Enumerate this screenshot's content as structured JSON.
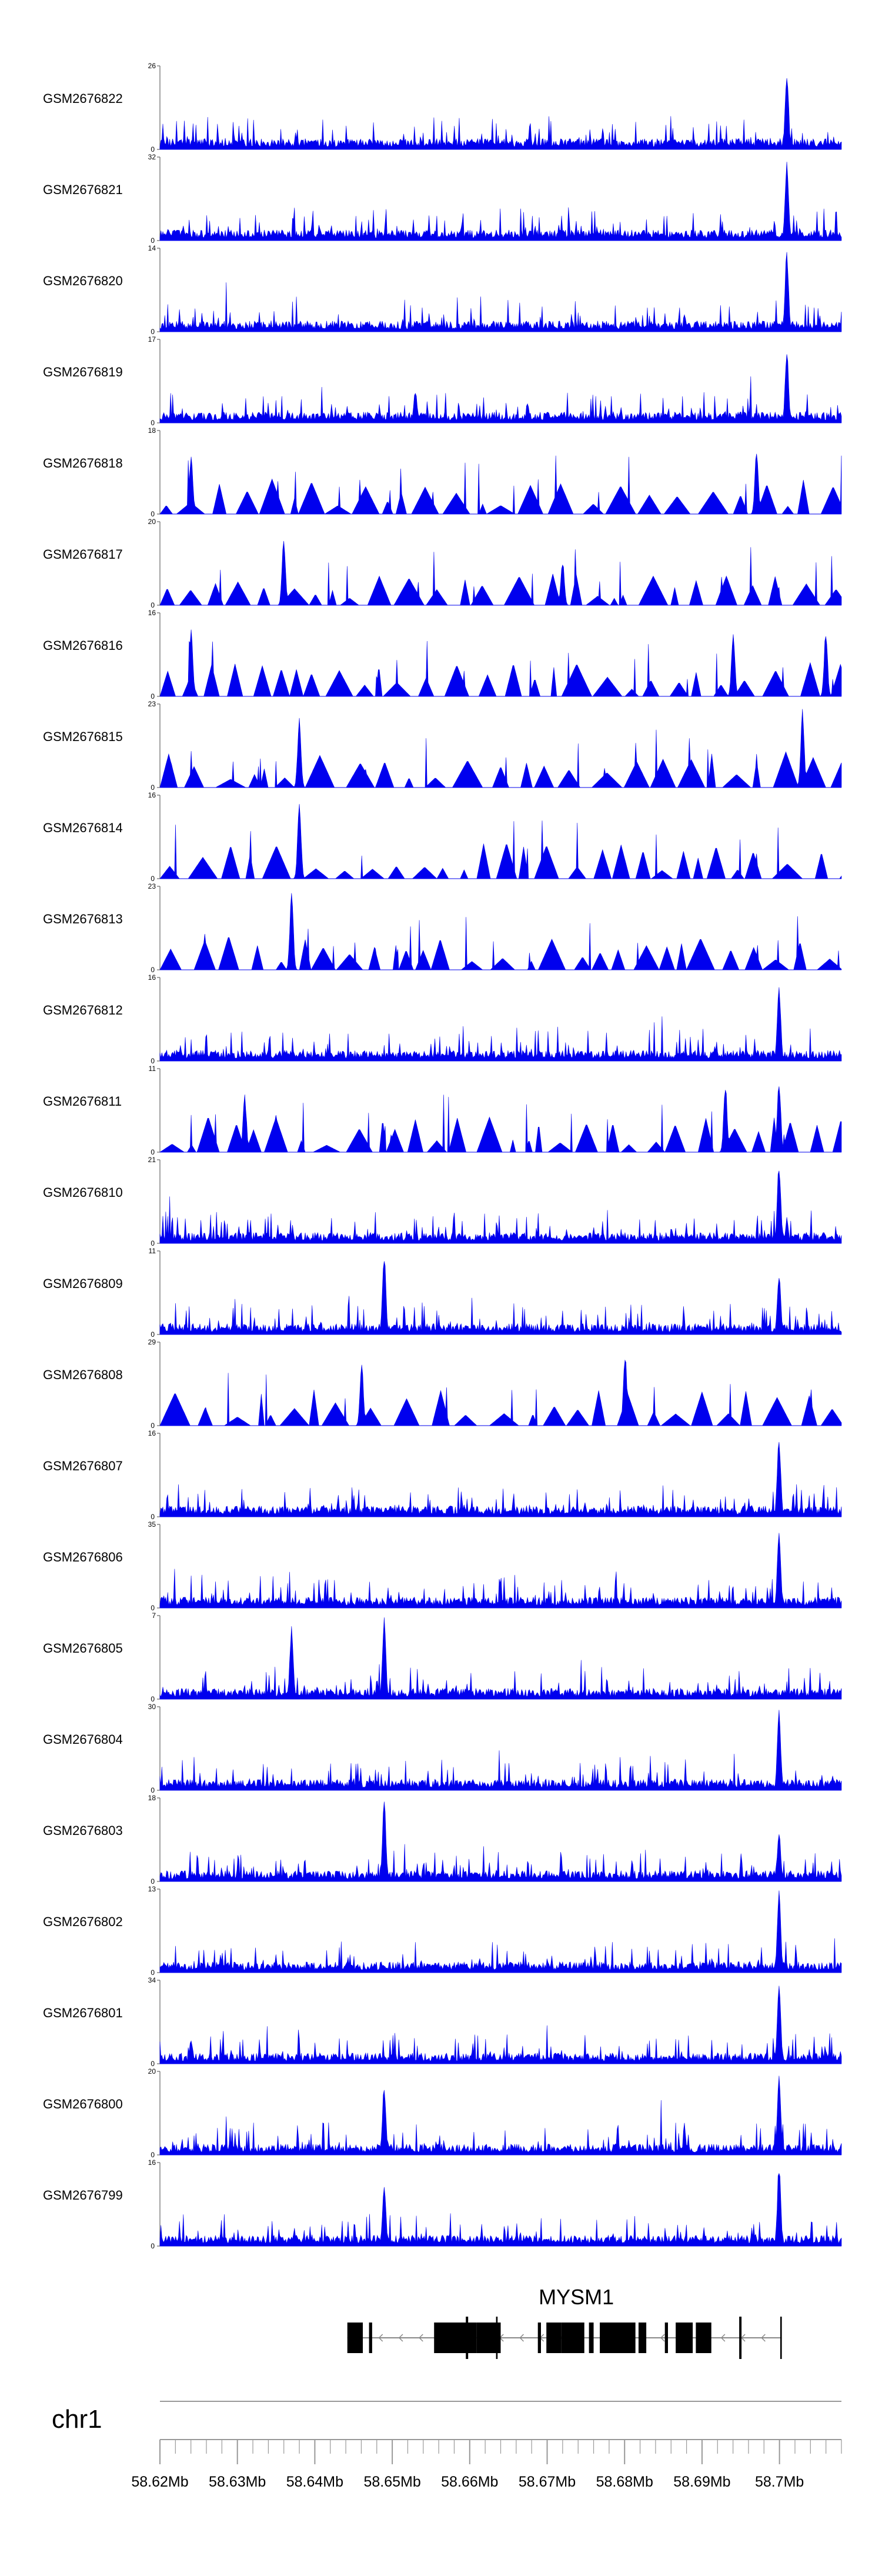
{
  "chart_data": {
    "type": "area",
    "chromosome": "chr1",
    "x_range_mb": [
      58.62,
      58.708
    ],
    "x_ticks": [
      "58.62Mb",
      "58.63Mb",
      "58.64Mb",
      "58.65Mb",
      "58.66Mb",
      "58.67Mb",
      "58.68Mb",
      "58.69Mb",
      "58.7Mb"
    ],
    "x_tick_values_mb": [
      58.62,
      58.63,
      58.64,
      58.65,
      58.66,
      58.67,
      58.68,
      58.69,
      58.7
    ],
    "track_color": "#0000ee",
    "tracks": [
      {
        "name": "GSM2676822",
        "ymax": 26,
        "style": "dense",
        "seed": 11,
        "peaks": [
          [
            58.701,
            1.0
          ]
        ]
      },
      {
        "name": "GSM2676821",
        "ymax": 32,
        "style": "dense",
        "seed": 12,
        "peaks": [
          [
            58.701,
            1.0
          ]
        ]
      },
      {
        "name": "GSM2676820",
        "ymax": 14,
        "style": "dense",
        "seed": 13,
        "peaks": [
          [
            58.701,
            1.0
          ]
        ]
      },
      {
        "name": "GSM2676819",
        "ymax": 17,
        "style": "dense",
        "seed": 14,
        "peaks": [
          [
            58.701,
            0.9
          ],
          [
            58.653,
            0.4
          ]
        ]
      },
      {
        "name": "GSM2676818",
        "ymax": 18,
        "style": "sparse",
        "seed": 15,
        "peaks": [
          [
            58.624,
            0.75
          ],
          [
            58.697,
            0.8
          ]
        ]
      },
      {
        "name": "GSM2676817",
        "ymax": 20,
        "style": "sparse",
        "seed": 16,
        "peaks": [
          [
            58.636,
            0.85
          ],
          [
            58.672,
            0.55
          ]
        ]
      },
      {
        "name": "GSM2676816",
        "ymax": 16,
        "style": "sparse",
        "seed": 17,
        "peaks": [
          [
            58.624,
            0.8
          ],
          [
            58.694,
            0.8
          ],
          [
            58.706,
            0.8
          ]
        ]
      },
      {
        "name": "GSM2676815",
        "ymax": 23,
        "style": "sparse",
        "seed": 18,
        "peaks": [
          [
            58.638,
            0.85
          ],
          [
            58.703,
            0.95
          ]
        ]
      },
      {
        "name": "GSM2676814",
        "ymax": 16,
        "style": "sparse",
        "seed": 19,
        "peaks": [
          [
            58.638,
            0.95
          ]
        ]
      },
      {
        "name": "GSM2676813",
        "ymax": 23,
        "style": "sparse",
        "seed": 20,
        "peaks": [
          [
            58.637,
            0.95
          ]
        ]
      },
      {
        "name": "GSM2676812",
        "ymax": 16,
        "style": "dense",
        "seed": 21,
        "peaks": [
          [
            58.7,
            0.95
          ]
        ]
      },
      {
        "name": "GSM2676811",
        "ymax": 11,
        "style": "sparse",
        "seed": 22,
        "peaks": [
          [
            58.7,
            0.9
          ],
          [
            58.693,
            0.85
          ],
          [
            58.631,
            0.7
          ]
        ]
      },
      {
        "name": "GSM2676810",
        "ymax": 21,
        "style": "dense",
        "seed": 23,
        "peaks": [
          [
            58.7,
            1.0
          ]
        ]
      },
      {
        "name": "GSM2676809",
        "ymax": 11,
        "style": "dense",
        "seed": 24,
        "peaks": [
          [
            58.649,
            1.0
          ],
          [
            58.7,
            0.75
          ]
        ]
      },
      {
        "name": "GSM2676808",
        "ymax": 29,
        "style": "sparse",
        "seed": 25,
        "peaks": [
          [
            58.68,
            0.9
          ],
          [
            58.646,
            0.75
          ]
        ]
      },
      {
        "name": "GSM2676807",
        "ymax": 16,
        "style": "dense",
        "seed": 26,
        "peaks": [
          [
            58.7,
            1.0
          ]
        ]
      },
      {
        "name": "GSM2676806",
        "ymax": 35,
        "style": "dense",
        "seed": 27,
        "peaks": [
          [
            58.7,
            1.0
          ]
        ]
      },
      {
        "name": "GSM2676805",
        "ymax": 7,
        "style": "dense",
        "seed": 28,
        "peaks": [
          [
            58.649,
            1.0
          ],
          [
            58.637,
            0.9
          ]
        ]
      },
      {
        "name": "GSM2676804",
        "ymax": 30,
        "style": "dense",
        "seed": 29,
        "peaks": [
          [
            58.7,
            1.0
          ]
        ]
      },
      {
        "name": "GSM2676803",
        "ymax": 18,
        "style": "dense",
        "seed": 30,
        "peaks": [
          [
            58.649,
            1.0
          ],
          [
            58.7,
            0.6
          ]
        ]
      },
      {
        "name": "GSM2676802",
        "ymax": 13,
        "style": "dense",
        "seed": 31,
        "peaks": [
          [
            58.7,
            1.0
          ]
        ]
      },
      {
        "name": "GSM2676801",
        "ymax": 34,
        "style": "dense",
        "seed": 32,
        "peaks": [
          [
            58.7,
            1.0
          ],
          [
            58.624,
            0.3
          ]
        ]
      },
      {
        "name": "GSM2676800",
        "ymax": 20,
        "style": "dense",
        "seed": 33,
        "peaks": [
          [
            58.7,
            1.0
          ],
          [
            58.649,
            0.85
          ]
        ]
      },
      {
        "name": "GSM2676799",
        "ymax": 16,
        "style": "dense",
        "seed": 34,
        "peaks": [
          [
            58.7,
            1.0
          ],
          [
            58.649,
            0.75
          ]
        ]
      }
    ],
    "gene": {
      "name": "MYSM1",
      "strand": "-",
      "start_mb": 58.6442,
      "end_mb": 58.7003,
      "exons_mb": [
        [
          58.6442,
          58.6462
        ],
        [
          58.647,
          58.6474
        ],
        [
          58.6554,
          58.6609
        ],
        [
          58.6609,
          58.664
        ],
        [
          58.6595,
          58.6598
        ],
        [
          58.6634,
          58.6636
        ],
        [
          58.6688,
          58.6692
        ],
        [
          58.6699,
          58.6718
        ],
        [
          58.6718,
          58.6722
        ],
        [
          58.6722,
          58.6748
        ],
        [
          58.6754,
          58.676
        ],
        [
          58.6768,
          58.6814
        ],
        [
          58.6818,
          58.6828
        ],
        [
          58.6852,
          58.6856
        ],
        [
          58.6866,
          58.6888
        ],
        [
          58.6892,
          58.6912
        ],
        [
          58.6948,
          58.6951
        ],
        [
          58.7001,
          58.7003
        ]
      ]
    }
  }
}
